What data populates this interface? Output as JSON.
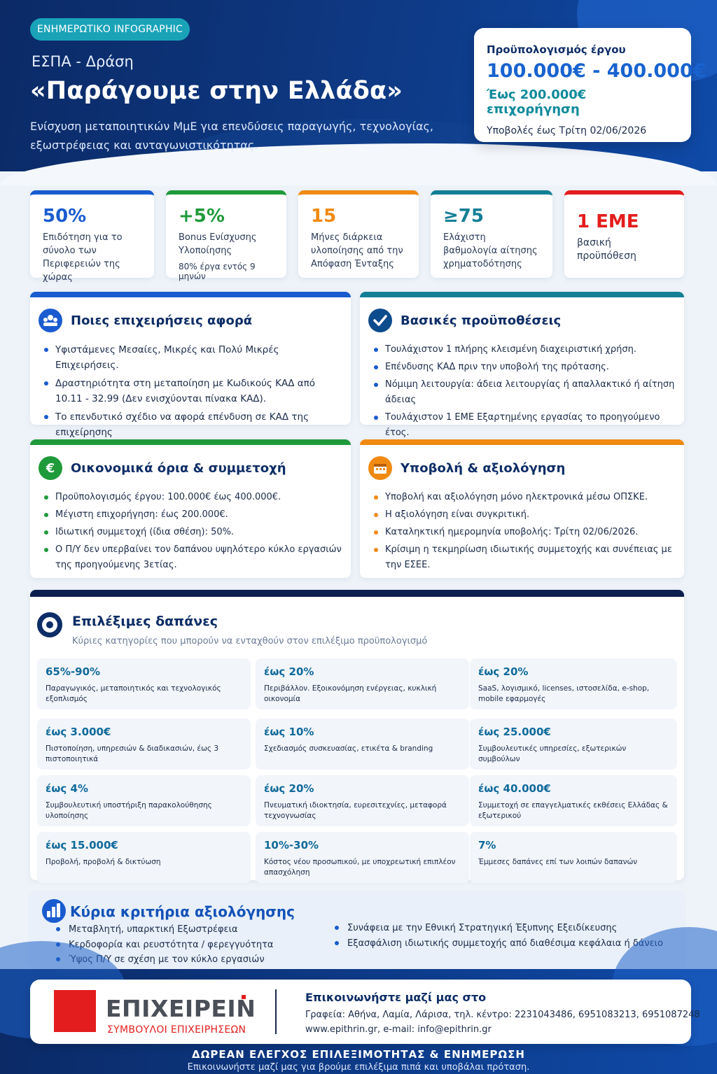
{
  "header": {
    "badge": "ΕΝΗΜΕΡΩΤΙΚΟ INFOGRAPHIC",
    "program": "ΕΣΠΑ - Δράση",
    "title": "«Παράγουμε στην Ελλάδα»",
    "description": "Ενίσχυση μεταποιητικών ΜμΕ για επενδύσεις παραγωγής, τεχνολογίας, εξωστρέφειας και ανταγωνιστικότητας."
  },
  "budget": {
    "label": "Προϋπολογισμός έργου",
    "range": "100.000€ - 400.000€",
    "grant": "Έως 200.000€ επιχορήγηση",
    "deadline": "Υποβολές έως Τρίτη 02/06/2026"
  },
  "stats": [
    {
      "value": "50%",
      "desc": "Επιδότηση για το σύνολο των Περιφερειών της χώρας",
      "extra": "",
      "color": "#1a5ccf"
    },
    {
      "value": "+5%",
      "desc": "Bonus Ενίσχυσης Υλοποίησης",
      "extra": "80% έργα εντός 9 μηνών",
      "color": "#1f9a3a"
    },
    {
      "value": "15",
      "desc": "Μήνες διάρκεια υλοποίησης από την Απόφαση Ένταξης",
      "extra": "",
      "color": "#f08a12"
    },
    {
      "value": "≥75",
      "desc": "Ελάχιστη βαθμολογία αίτησης χρηματοδότησης",
      "extra": "",
      "color": "#137f95"
    },
    {
      "value": "1 ΕΜΕ",
      "desc": "βασική προϋπόθεση",
      "extra": "",
      "color": "#e31d1d"
    }
  ],
  "cards": {
    "who": {
      "title": "Ποιες επιχειρήσεις αφορά",
      "items": [
        "Υφιστάμενες Μεσαίες, Μικρές και Πολύ Μικρές Επιχειρήσεις.",
        "Δραστηριότητα στη μεταποίηση με Κωδικούς ΚΑΔ από 10.11 - 32.99 (Δεν ενισχύονται πίνακα ΚΑΔ).",
        "Το επενδυτικό σχέδιο να αφορά επένδυση σε ΚΑΔ της επιχείρησης"
      ]
    },
    "requirements": {
      "title": "Βασικές προϋποθέσεις",
      "items": [
        "Τουλάχιστον 1 πλήρης κλεισμένη διαχειριστική χρήση.",
        "Επένδυσης ΚΑΔ πριν την υποβολή της πρότασης.",
        "Νόμιμη λειτουργία: άδεια λειτουργίας ή απαλλακτικό ή αίτηση άδειας",
        "Τουλάχιστον 1 ΕΜΕ Εξαρτημένης εργασίας το προηγούμενο έτος."
      ]
    },
    "finance": {
      "title": "Οικονομικά όρια & συμμετοχή",
      "items": [
        "Προϋπολογισμός έργου: 100.000€ έως 400.000€.",
        "Μέγιστη επιχορήγηση: έως 200.000€.",
        "Ιδιωτική συμμετοχή (ίδια σθέση): 50%.",
        "Ο Π/Υ δεν υπερβαίνει τον δαπάνου υψηλότερο κύκλο εργασιών της προηγούμενης 3ετίας."
      ]
    },
    "submission": {
      "title": "Υποβολή & αξιολόγηση",
      "items": [
        "Υποβολή και αξιολόγηση μόνο ηλεκτρονικά μέσω ΟΠΣΚΕ.",
        "Η αξιολόγηση είναι συγκριτική.",
        "Καταληκτική ημερομηνία υποβολής: Τρίτη 02/06/2026.",
        "Κρίσιμη η τεκμηρίωση ιδιωτικής συμμετοχής και συνέπειας με την ΕΣΕΕ."
      ]
    }
  },
  "expenses": {
    "title": "Επιλέξιμες δαπάνες",
    "subtitle": "Κύριες κατηγορίες που μπορούν να ενταχθούν στον επιλέξιμο προϋπολογισμό",
    "items": [
      {
        "value": "65%-90%",
        "desc": "Παραγωγικός, μεταποιητικός και τεχνολογικός εξοπλισμός"
      },
      {
        "value": "έως 20%",
        "desc": "Περιβάλλον. Εξοικονόμηση ενέργειας, κυκλική οικονομία"
      },
      {
        "value": "έως 20%",
        "desc": "SaaS, λογισμικό, licenses, ιστοσελίδα, e-shop, mobile εφαρμογές"
      },
      {
        "value": "έως 3.000€",
        "desc": "Πιστοποίηση, υπηρεσιών & διαδικασιών, έως 3 πιστοποιητικά"
      },
      {
        "value": "έως 10%",
        "desc": "Σχεδιασμός συσκευασίας, ετικέτα & branding"
      },
      {
        "value": "έως 25.000€",
        "desc": "Συμβουλευτικές υπηρεσίες, εξωτερικών συμβούλων"
      },
      {
        "value": "έως 4%",
        "desc": "Συμβουλευτική υποστήριξη παρακολούθησης υλοποίησης"
      },
      {
        "value": "έως 20%",
        "desc": "Πνευματική ιδιοκτησία, ευρεσιτεχνίες, μεταφορά τεχνογνωσίας"
      },
      {
        "value": "έως 40.000€",
        "desc": "Συμμετοχή σε επαγγελματικές εκθέσεις Ελλάδας & εξωτερικού"
      },
      {
        "value": "έως 15.000€",
        "desc": "Προβολή, προβολή & δικτύωση"
      },
      {
        "value": "10%-30%",
        "desc": "Κόστος νέου προσωπικού, με υποχρεωτική επιπλέον απασχόληση"
      },
      {
        "value": "7%",
        "desc": "Έμμεσες δαπάνες επί των λοιπών δαπανών"
      }
    ]
  },
  "criteria": {
    "title": "Κύρια κριτήρια αξιολόγησης",
    "left": [
      "Μεταβλητή, υπαρκτική Εξωστρέφεια",
      "Κερδοφορία και ρευστότητα / φερεγγυότητα",
      "Ύψος Π/Υ σε σχέση με τον κύκλο εργασιών"
    ],
    "right": [
      "Συνάφεια με την Εθνική Στρατηγική Έξυπνης Εξειδίκευσης",
      "Εξασφάλιση ιδιωτικής συμμετοχής από διαθέσιμα κεφάλαια ή δάνειο"
    ]
  },
  "footer": {
    "logo_word": "ΕΠΙΧΕΙΡΕΙΝ",
    "logo_sub": "ΣΥΜΒΟΥΛΟΙ ΕΠΙΧΕΙΡΗΣΕΩΝ",
    "contact_title": "Επικοινωνήστε μαζί μας στο",
    "contact_line1": "Γραφεία: Αθήνα, Λαμία, Λάρισα, τηλ. κέντρο: 2231043486, 6951083213, 6951087248",
    "contact_line2": "www.epithrin.gr, e-mail: info@epithrin.gr",
    "cta": "ΔΩΡΕΑΝ ΕΛΕΓΧΟΣ ΕΠΙΛΕΞΙΜΟΤΗΤΑΣ & ΕΝΗΜΕΡΩΣΗ",
    "cta_sub": "Επικοινωνήστε μαζί μας για βρούμε επιλέξιμα πιπά και υποβάλαι πρόταση."
  },
  "colors": {
    "navy": "#0b2a66",
    "blue": "#1a5ccf",
    "green": "#1f9a3a",
    "orange": "#f08a12",
    "teal": "#137f95",
    "red": "#e31d1d"
  }
}
